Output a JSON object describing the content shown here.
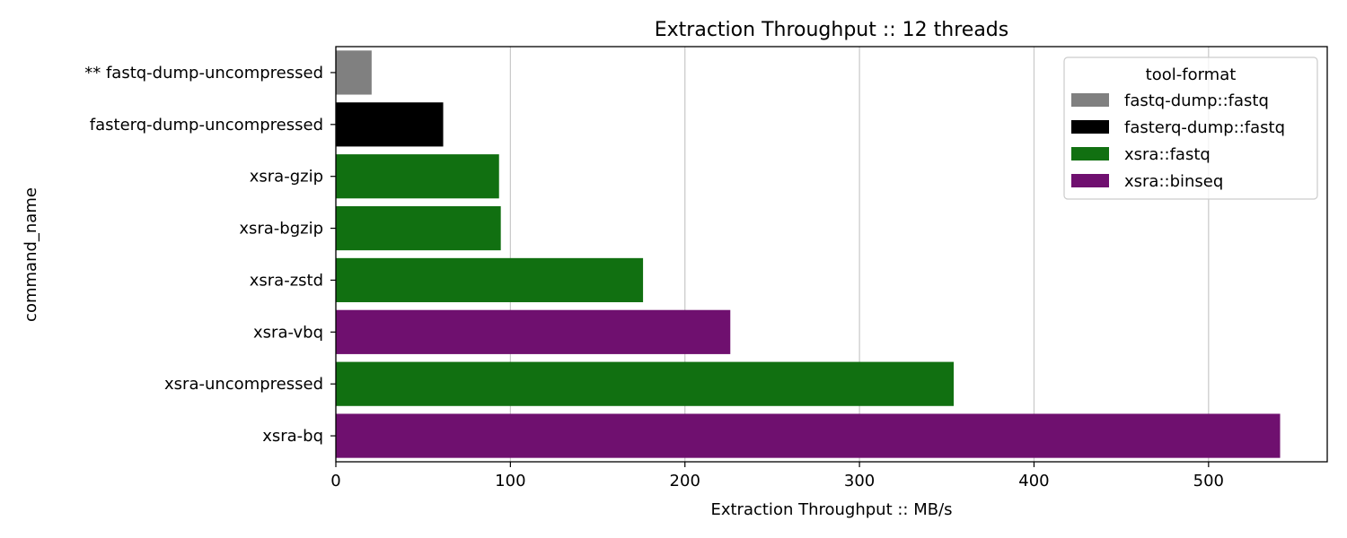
{
  "chart_data": {
    "type": "bar",
    "orientation": "horizontal",
    "title": "Extraction Throughput :: 12 threads",
    "xlabel": "Extraction Throughput :: MB/s",
    "ylabel": "command_name",
    "xlim": [
      0,
      568
    ],
    "xticks": [
      0,
      100,
      200,
      300,
      400,
      500
    ],
    "grid": "vertical",
    "categories": [
      "** fastq-dump-uncompressed",
      "fasterq-dump-uncompressed",
      "xsra-gzip",
      "xsra-bgzip",
      "xsra-zstd",
      "xsra-vbq",
      "xsra-uncompressed",
      "xsra-bq"
    ],
    "values": [
      20.5,
      61.5,
      93.5,
      94.5,
      176,
      226,
      354,
      541
    ],
    "groups": [
      "fastq-dump::fastq",
      "fasterq-dump::fastq",
      "xsra::fastq",
      "xsra::fastq",
      "xsra::fastq",
      "xsra::binseq",
      "xsra::fastq",
      "xsra::binseq"
    ],
    "legend": {
      "title": "tool-format",
      "placement": "top-right",
      "entries": [
        {
          "name": "fastq-dump::fastq",
          "color": "#808080"
        },
        {
          "name": "fasterq-dump::fastq",
          "color": "#000000"
        },
        {
          "name": "xsra::fastq",
          "color": "#117011"
        },
        {
          "name": "xsra::binseq",
          "color": "#6f106f"
        }
      ]
    }
  }
}
